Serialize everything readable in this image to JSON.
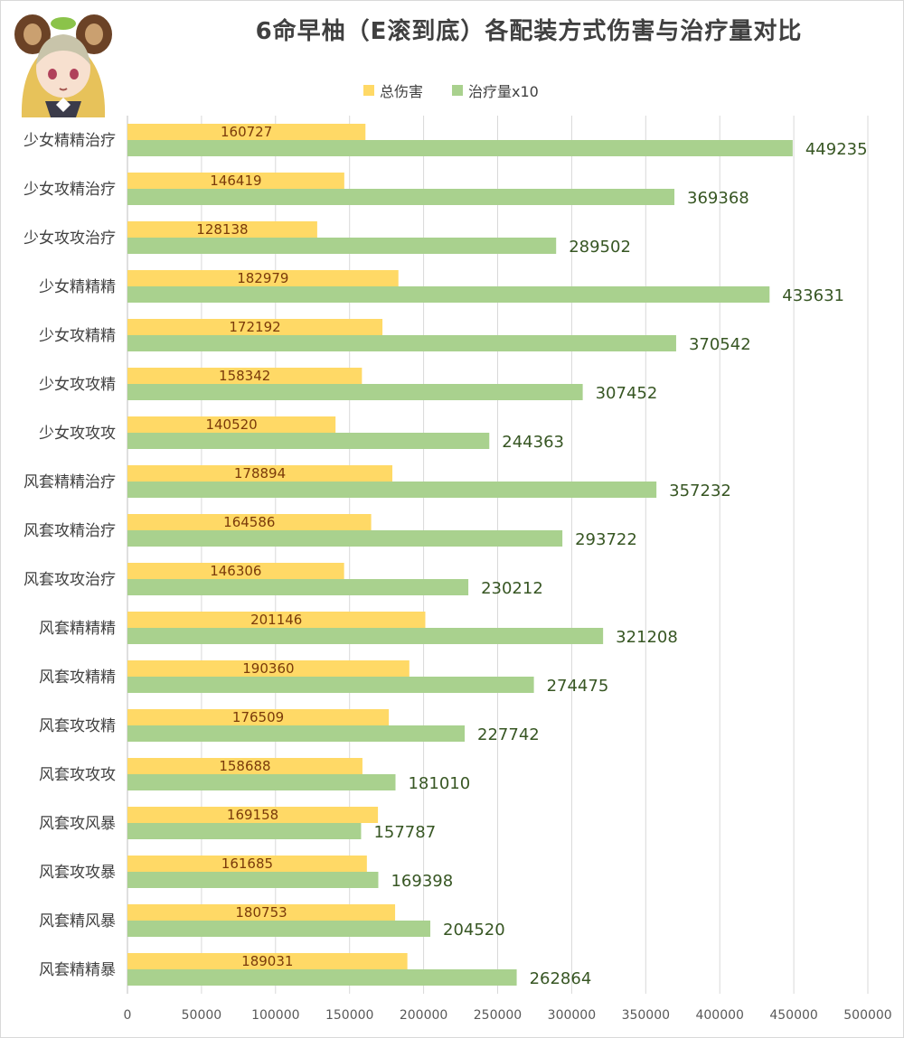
{
  "chart_data": {
    "type": "bar",
    "orientation": "horizontal",
    "title": "6命早柚（E滚到底）各配装方式伤害与治疗量对比",
    "categories": [
      "少女精精治疗",
      "少女攻精治疗",
      "少女攻攻治疗",
      "少女精精精",
      "少女攻精精",
      "少女攻攻精",
      "少女攻攻攻",
      "风套精精治疗",
      "风套攻精治疗",
      "风套攻攻治疗",
      "风套精精精",
      "风套攻精精",
      "风套攻攻精",
      "风套攻攻攻",
      "风套攻风暴",
      "风套攻攻暴",
      "风套精风暴",
      "风套精精暴"
    ],
    "series": [
      {
        "name": "总伤害",
        "color": "#ffd966",
        "values": [
          160727,
          146419,
          128138,
          182979,
          172192,
          158342,
          140520,
          178894,
          164586,
          146306,
          201146,
          190360,
          176509,
          158688,
          169158,
          161685,
          180753,
          189031
        ]
      },
      {
        "name": "治疗量x10",
        "color": "#a9d18e",
        "values": [
          449235,
          369368,
          289502,
          433631,
          370542,
          307452,
          244363,
          357232,
          293722,
          230212,
          321208,
          274475,
          227742,
          181010,
          157787,
          169398,
          204520,
          262864
        ]
      }
    ],
    "xlim": [
      0,
      500000
    ],
    "xticks": [
      0,
      50000,
      100000,
      150000,
      200000,
      250000,
      300000,
      350000,
      400000,
      450000,
      500000
    ],
    "grid": true,
    "legend_position": "top"
  }
}
